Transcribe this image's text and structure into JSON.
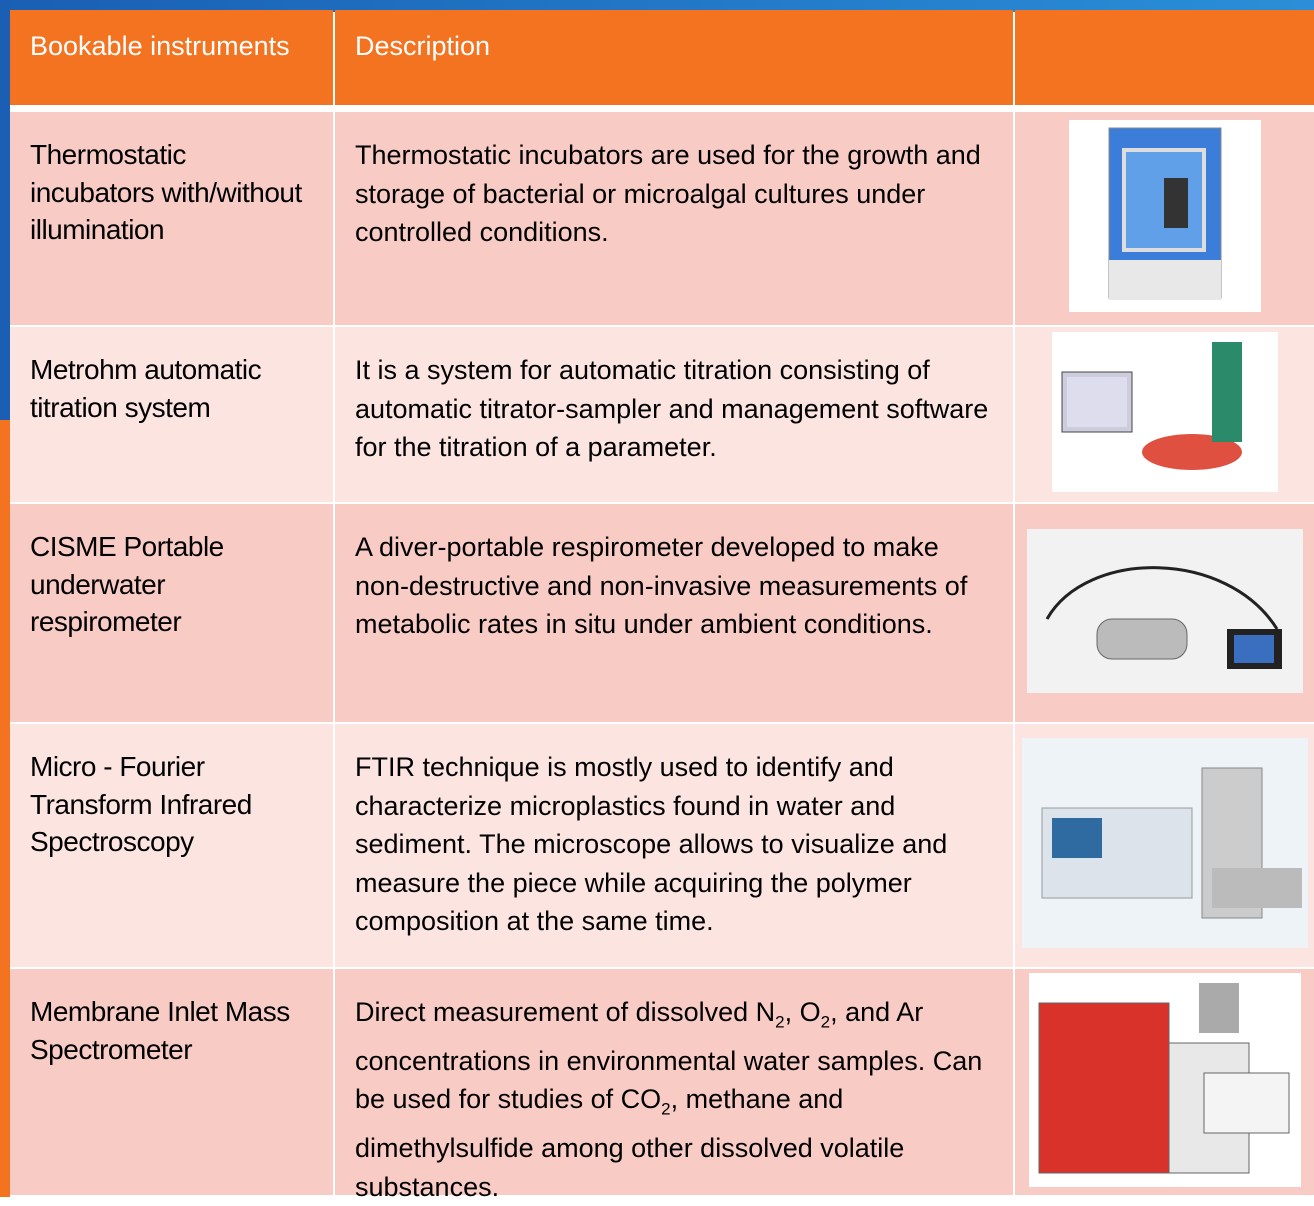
{
  "table": {
    "header": [
      "Bookable instruments",
      "Description"
    ],
    "rows": [
      {
        "name": "Thermostatic incubators with/without illumination",
        "description": [
          "Thermostatic incubators are used for the growth and storage of bacterial or microalgal cultures under controlled conditions."
        ]
      },
      {
        "name": "Metrohm automatic titration system",
        "description": [
          "It is a system for automatic titration consisting of automatic titrator-sampler and management software for the titration of a parameter."
        ]
      },
      {
        "name": "CISME Portable underwater respirometer",
        "description": [
          "A diver-portable respirometer developed to make non-destructive and non-invasive measurements of metabolic rates in situ under ambient conditions."
        ]
      },
      {
        "name": "Micro - Fourier Transform Infrared Spectroscopy",
        "description": [
          "FTIR technique is mostly used to identify and characterize microplastics found in water and sediment. The microscope allows to visualize and measure the piece while acquiring the polymer composition at the same time."
        ]
      },
      {
        "name": "Membrane Inlet Mass Spectrometer",
        "description": [
          "Direct measurement of dissolved N",
          "2",
          ", O",
          "2",
          ", and Ar concentrations in environmental water samples. Can be used for studies of CO",
          "2",
          ", methane and dimethylsulfide among other dissolved volatile substances."
        ]
      }
    ]
  }
}
